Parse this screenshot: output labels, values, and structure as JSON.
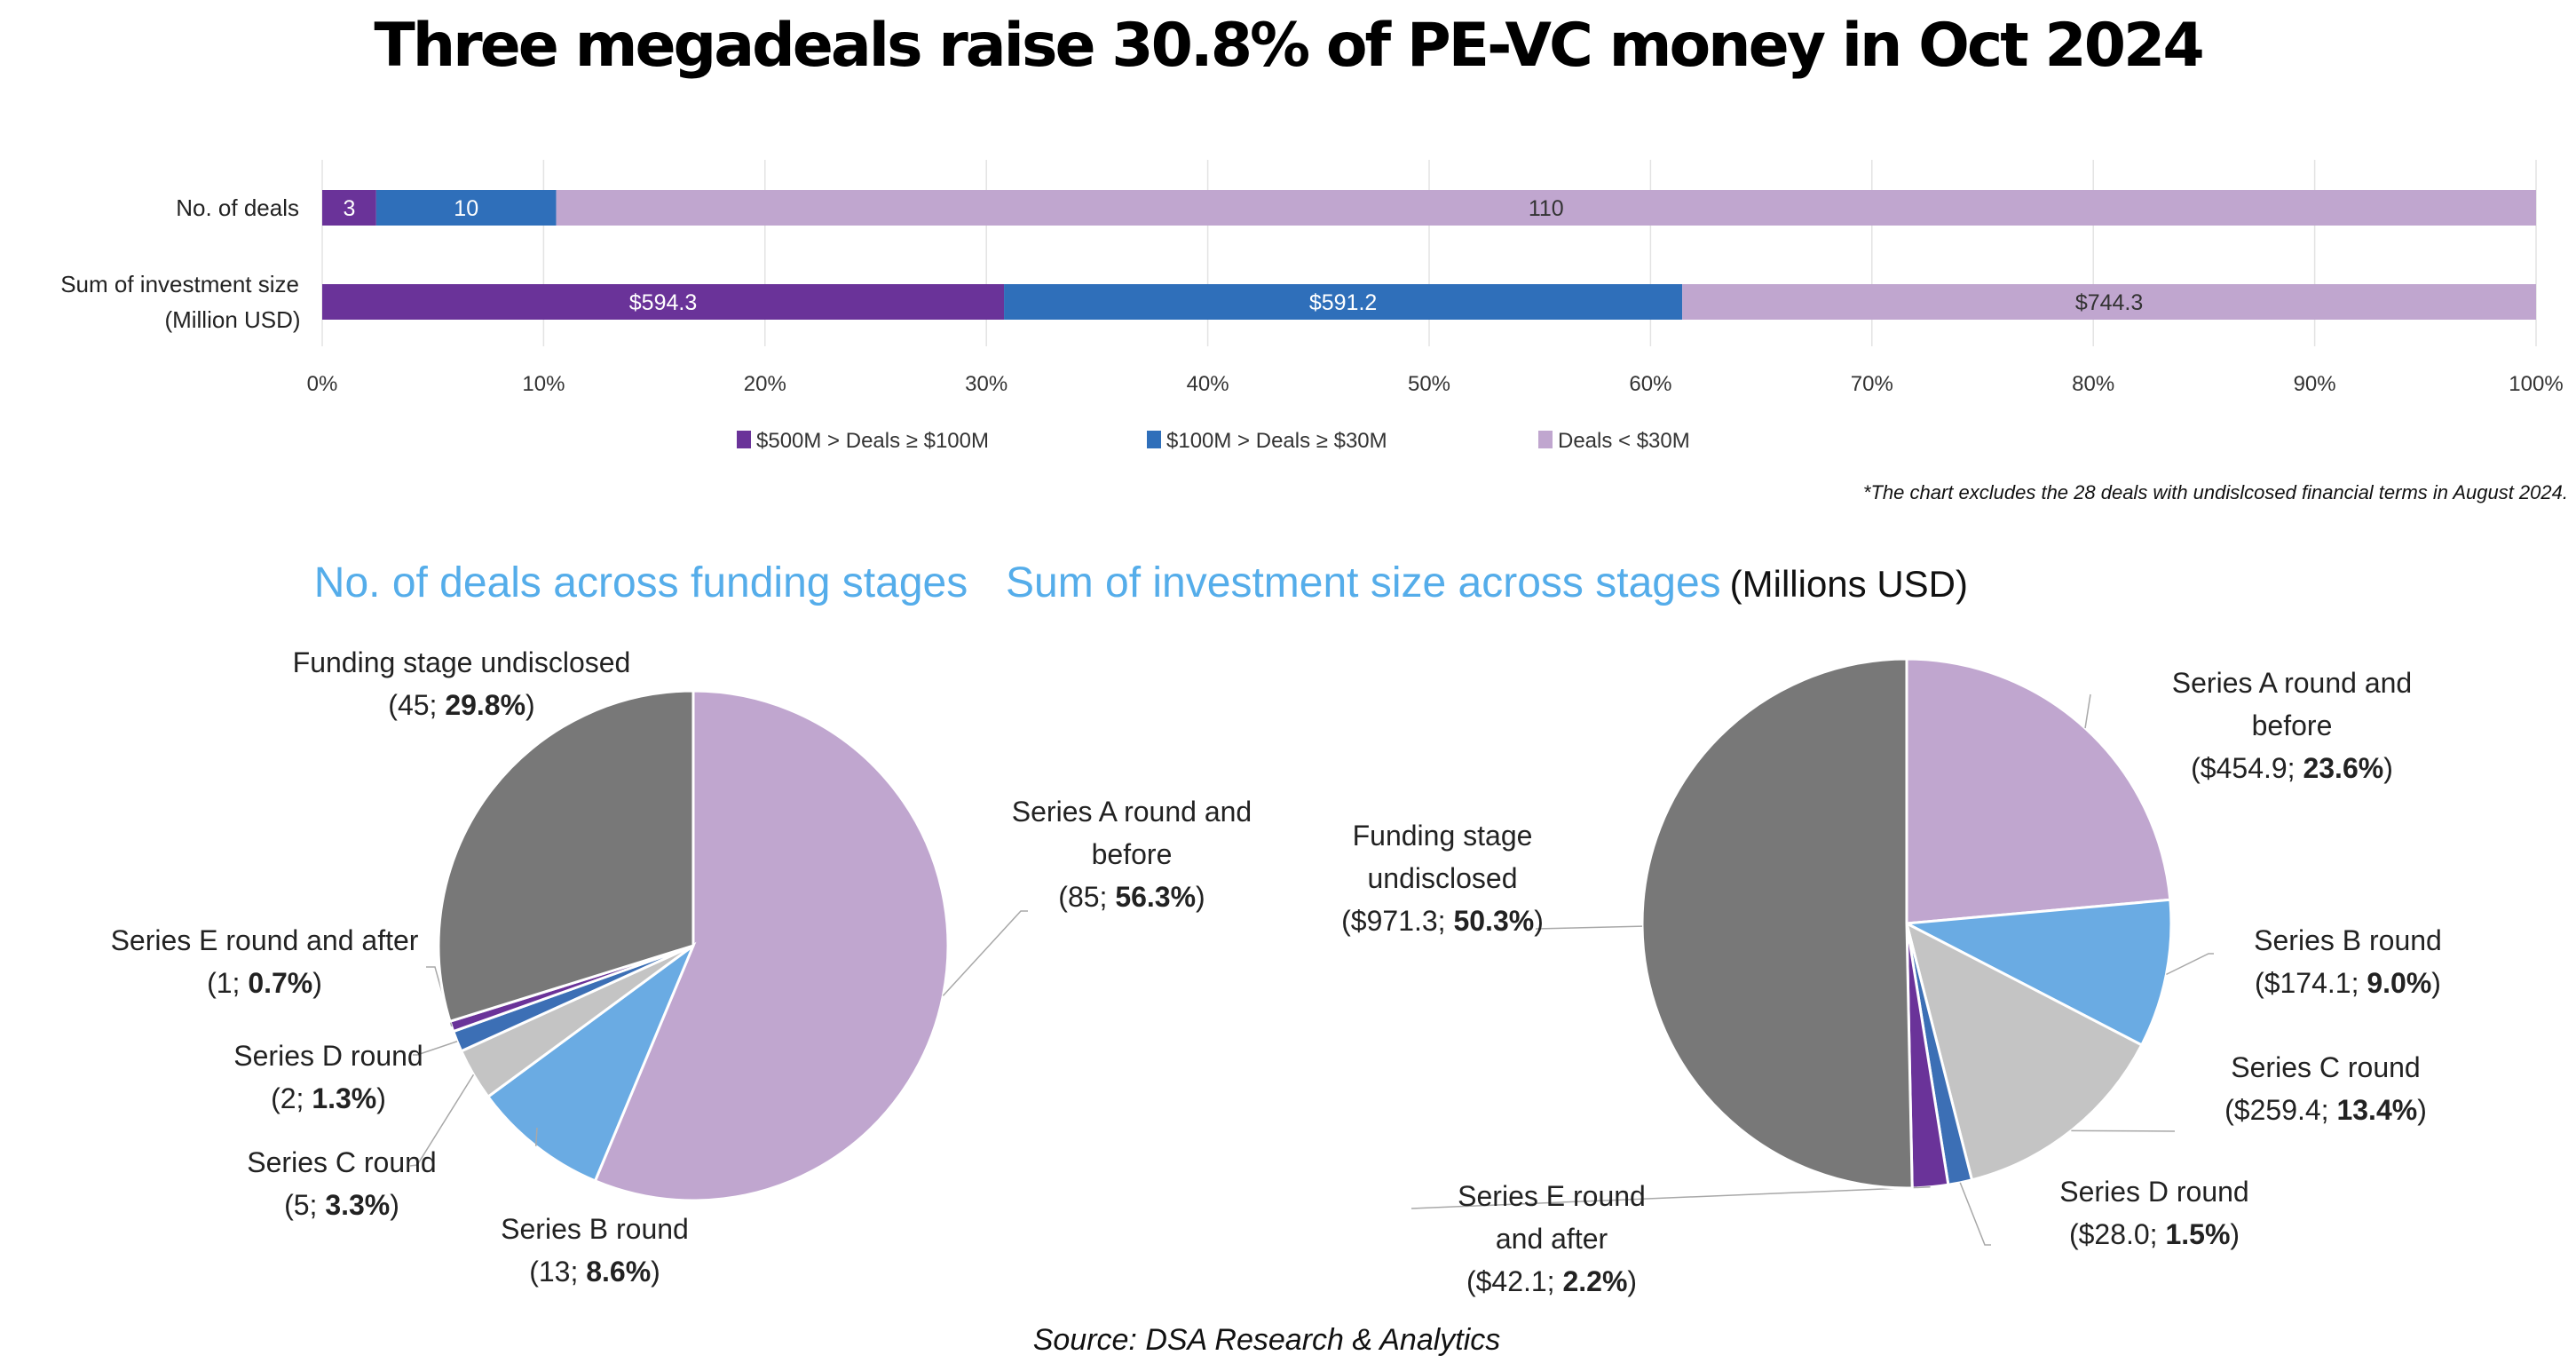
{
  "title": "Three megadeals raise 30.8% of PE-VC money in Oct 2024",
  "colors": {
    "tier_large": "#6a3399",
    "tier_mid": "#2f6fba",
    "tier_small": "#c0a6cf",
    "series_a": "#c0a6cf",
    "series_b": "#6aabe3",
    "series_c": "#c4c4c4",
    "series_d": "#3c6fb5",
    "series_e": "#6a3399",
    "undisclosed": "#787878",
    "pie_title": "#55adea"
  },
  "footnote": "*The chart excludes the 28 deals with undislcosed financial terms in August 2024.",
  "source": "Source: DSA Research & Analytics",
  "chart_data": [
    {
      "type": "bar",
      "orientation": "horizontal",
      "stacked": "percent",
      "categories": [
        "No. of deals",
        "Sum of investment size|(Million USD)"
      ],
      "series": [
        {
          "name": "$500M > Deals ≥ $100M",
          "color_key": "tier_large",
          "values": [
            3,
            594.3
          ],
          "labels": [
            "3",
            "$594.3"
          ]
        },
        {
          "name": "$100M > Deals ≥ $30M",
          "color_key": "tier_mid",
          "values": [
            10,
            591.2
          ],
          "labels": [
            "10",
            "$591.2"
          ]
        },
        {
          "name": "Deals < $30M",
          "color_key": "tier_small",
          "values": [
            110,
            744.3
          ],
          "labels": [
            "110",
            "$744.3"
          ]
        }
      ],
      "xlim": [
        0,
        100
      ],
      "xticks": [
        "0%",
        "10%",
        "20%",
        "30%",
        "40%",
        "50%",
        "60%",
        "70%",
        "80%",
        "90%",
        "100%"
      ],
      "grid": true,
      "legend": "bottom"
    },
    {
      "type": "pie",
      "title": "No. of deals across funding stages",
      "title_suffix": "",
      "slices": [
        {
          "label": "Series A round and before",
          "value": 85,
          "value_text": "85",
          "percent": 56.3,
          "percent_text": "56.3%",
          "color_key": "series_a"
        },
        {
          "label": "Series B round",
          "value": 13,
          "value_text": "13",
          "percent": 8.6,
          "percent_text": "8.6%",
          "color_key": "series_b"
        },
        {
          "label": "Series C round",
          "value": 5,
          "value_text": "5",
          "percent": 3.3,
          "percent_text": "3.3%",
          "color_key": "series_c"
        },
        {
          "label": "Series D round",
          "value": 2,
          "value_text": "2",
          "percent": 1.3,
          "percent_text": "1.3%",
          "color_key": "series_d"
        },
        {
          "label": "Series E round and after",
          "value": 1,
          "value_text": "1",
          "percent": 0.7,
          "percent_text": "0.7%",
          "color_key": "series_e"
        },
        {
          "label": "Funding stage undisclosed",
          "value": 45,
          "value_text": "45",
          "percent": 29.8,
          "percent_text": "29.8%",
          "color_key": "undisclosed"
        }
      ]
    },
    {
      "type": "pie",
      "title": "Sum of investment size across stages",
      "title_suffix": "(Millions USD)",
      "slices": [
        {
          "label": "Series A round and before",
          "value": 454.9,
          "value_text": "$454.9",
          "percent": 23.6,
          "percent_text": "23.6%",
          "color_key": "series_a"
        },
        {
          "label": "Series B round",
          "value": 174.1,
          "value_text": "$174.1",
          "percent": 9.0,
          "percent_text": "9.0%",
          "color_key": "series_b"
        },
        {
          "label": "Series C round",
          "value": 259.4,
          "value_text": "$259.4",
          "percent": 13.4,
          "percent_text": "13.4%",
          "color_key": "series_c"
        },
        {
          "label": "Series D round",
          "value": 28.0,
          "value_text": "$28.0",
          "percent": 1.5,
          "percent_text": "1.5%",
          "color_key": "series_d"
        },
        {
          "label": "Series E round and after",
          "value": 42.1,
          "value_text": "$42.1",
          "percent": 2.2,
          "percent_text": "2.2%",
          "color_key": "series_e"
        },
        {
          "label": "Funding stage undisclosed",
          "value": 971.3,
          "value_text": "$971.3",
          "percent": 50.3,
          "percent_text": "50.3%",
          "color_key": "undisclosed"
        }
      ]
    }
  ]
}
